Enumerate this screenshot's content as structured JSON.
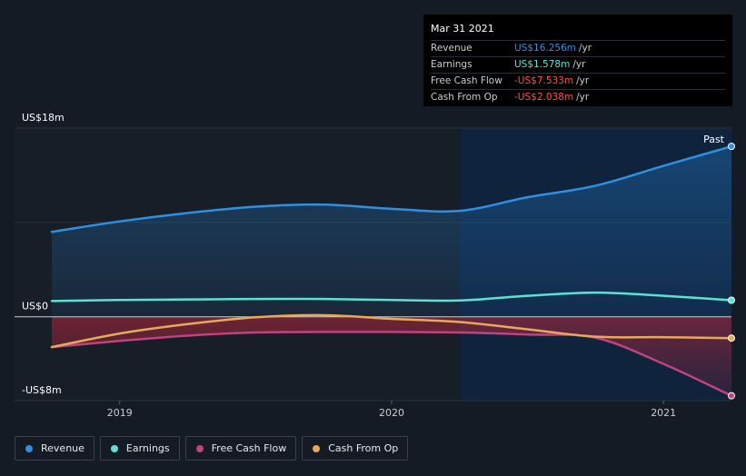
{
  "chart_data": {
    "type": "area",
    "y_label_top": "US$18m",
    "y_label_zero": "US$0",
    "y_label_bottom": "-US$8m",
    "ylim": [
      -8,
      18
    ],
    "xlim": [
      2018.72,
      2021.25
    ],
    "x_ticks": [
      {
        "value": 2019.0,
        "label": "2019"
      },
      {
        "value": 2020.0,
        "label": "2020"
      },
      {
        "value": 2021.0,
        "label": "2021"
      }
    ],
    "past_label": "Past",
    "highlight_start": 2020.25,
    "series": [
      {
        "name": "Revenue",
        "color": "#2f8fe0",
        "x": [
          2018.75,
          2019.0,
          2019.25,
          2019.5,
          2019.75,
          2020.0,
          2020.25,
          2020.5,
          2020.75,
          2021.0,
          2021.25
        ],
        "values": [
          8.1,
          9.1,
          9.9,
          10.5,
          10.7,
          10.3,
          10.1,
          11.4,
          12.5,
          14.4,
          16.256
        ]
      },
      {
        "name": "Earnings",
        "color": "#5ce1d6",
        "x": [
          2018.75,
          2019.0,
          2019.25,
          2019.5,
          2019.75,
          2020.0,
          2020.25,
          2020.5,
          2020.75,
          2021.0,
          2021.25
        ],
        "values": [
          1.5,
          1.6,
          1.65,
          1.7,
          1.7,
          1.6,
          1.55,
          2.0,
          2.3,
          2.0,
          1.578
        ]
      },
      {
        "name": "Free Cash Flow",
        "color": "#c0427f",
        "x": [
          2018.75,
          2019.0,
          2019.25,
          2019.5,
          2019.75,
          2020.0,
          2020.25,
          2020.5,
          2020.75,
          2021.0,
          2021.25
        ],
        "values": [
          -2.9,
          -2.3,
          -1.8,
          -1.5,
          -1.45,
          -1.45,
          -1.5,
          -1.7,
          -2.0,
          -4.5,
          -7.533
        ]
      },
      {
        "name": "Cash From Op",
        "color": "#e8a85c",
        "x": [
          2018.75,
          2019.0,
          2019.25,
          2019.5,
          2019.75,
          2020.0,
          2020.25,
          2020.5,
          2020.75,
          2021.0,
          2021.25
        ],
        "values": [
          -2.9,
          -1.6,
          -0.7,
          -0.05,
          0.15,
          -0.2,
          -0.5,
          -1.2,
          -1.9,
          -1.95,
          -2.038
        ]
      }
    ]
  },
  "tooltip": {
    "date": "Mar 31 2021",
    "rows": [
      {
        "name": "Revenue",
        "value": "US$16.256m",
        "unit": "/yr",
        "color": "#2f8fe0"
      },
      {
        "name": "Earnings",
        "value": "US$1.578m",
        "unit": "/yr",
        "color": "#5ce1d6"
      },
      {
        "name": "Free Cash Flow",
        "value": "-US$7.533m",
        "unit": "/yr",
        "color": "#ff4d4d"
      },
      {
        "name": "Cash From Op",
        "value": "-US$2.038m",
        "unit": "/yr",
        "color": "#ff4d4d"
      }
    ]
  },
  "legend": [
    {
      "label": "Revenue",
      "color": "#2f8fe0"
    },
    {
      "label": "Earnings",
      "color": "#5ce1d6"
    },
    {
      "label": "Free Cash Flow",
      "color": "#c0427f"
    },
    {
      "label": "Cash From Op",
      "color": "#e8a85c"
    }
  ]
}
